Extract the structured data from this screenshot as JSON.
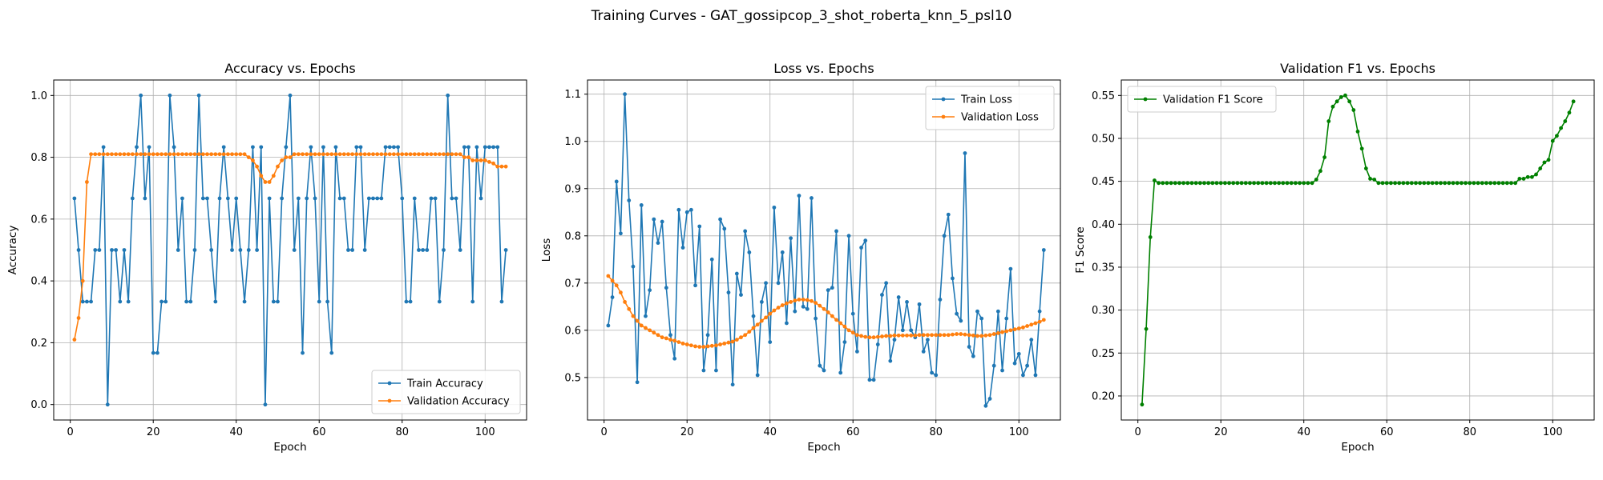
{
  "figure_title": "Training Curves - GAT_gossipcop_3_shot_roberta_knn_5_psl10",
  "colors": {
    "train": "#1f77b4",
    "validation": "#ff7f0e",
    "f1": "#008000"
  },
  "chart_data": [
    {
      "type": "line",
      "title": "Accuracy vs. Epochs",
      "xlabel": "Epoch",
      "ylabel": "Accuracy",
      "xlim": [
        -4,
        110
      ],
      "ylim": [
        -0.05,
        1.05
      ],
      "xticks": [
        0,
        20,
        40,
        60,
        80,
        100
      ],
      "yticks": [
        0.0,
        0.2,
        0.4,
        0.6,
        0.8,
        1.0
      ],
      "ytick_labels": [
        "0.0",
        "0.2",
        "0.4",
        "0.6",
        "0.8",
        "1.0"
      ],
      "grid": true,
      "legend_position": "lower-right",
      "series": [
        {
          "name": "Train Accuracy",
          "color": "#1f77b4",
          "x_start": 1,
          "values": [
            0.667,
            0.5,
            0.333,
            0.333,
            0.333,
            0.5,
            0.5,
            0.833,
            0.0,
            0.5,
            0.5,
            0.333,
            0.5,
            0.333,
            0.667,
            0.833,
            1.0,
            0.667,
            0.833,
            0.167,
            0.167,
            0.333,
            0.333,
            1.0,
            0.833,
            0.5,
            0.667,
            0.333,
            0.333,
            0.5,
            1.0,
            0.667,
            0.667,
            0.5,
            0.333,
            0.667,
            0.833,
            0.667,
            0.5,
            0.667,
            0.5,
            0.333,
            0.5,
            0.833,
            0.5,
            0.833,
            0.0,
            0.667,
            0.333,
            0.333,
            0.667,
            0.833,
            1.0,
            0.5,
            0.667,
            0.167,
            0.667,
            0.833,
            0.667,
            0.333,
            0.833,
            0.333,
            0.167,
            0.833,
            0.667,
            0.667,
            0.5,
            0.5,
            0.833,
            0.833,
            0.5,
            0.667,
            0.667,
            0.667,
            0.667,
            0.833,
            0.833,
            0.833,
            0.833,
            0.667,
            0.333,
            0.333,
            0.667,
            0.5,
            0.5,
            0.5,
            0.667,
            0.667,
            0.333,
            0.5,
            1.0,
            0.667,
            0.667,
            0.5,
            0.833,
            0.833,
            0.333,
            0.833,
            0.667,
            0.833,
            0.833,
            0.833,
            0.833,
            0.333,
            0.5
          ]
        },
        {
          "name": "Validation Accuracy",
          "color": "#ff7f0e",
          "x_start": 1,
          "values": [
            0.21,
            0.28,
            0.4,
            0.72,
            0.81,
            0.81,
            0.81,
            0.81,
            0.81,
            0.81,
            0.81,
            0.81,
            0.81,
            0.81,
            0.81,
            0.81,
            0.81,
            0.81,
            0.81,
            0.81,
            0.81,
            0.81,
            0.81,
            0.81,
            0.81,
            0.81,
            0.81,
            0.81,
            0.81,
            0.81,
            0.81,
            0.81,
            0.81,
            0.81,
            0.81,
            0.81,
            0.81,
            0.81,
            0.81,
            0.81,
            0.81,
            0.81,
            0.8,
            0.79,
            0.77,
            0.74,
            0.72,
            0.72,
            0.74,
            0.77,
            0.79,
            0.8,
            0.8,
            0.81,
            0.81,
            0.81,
            0.81,
            0.81,
            0.81,
            0.81,
            0.81,
            0.81,
            0.81,
            0.81,
            0.81,
            0.81,
            0.81,
            0.81,
            0.81,
            0.81,
            0.81,
            0.81,
            0.81,
            0.81,
            0.81,
            0.81,
            0.81,
            0.81,
            0.81,
            0.81,
            0.81,
            0.81,
            0.81,
            0.81,
            0.81,
            0.81,
            0.81,
            0.81,
            0.81,
            0.81,
            0.81,
            0.81,
            0.81,
            0.81,
            0.8,
            0.8,
            0.79,
            0.79,
            0.79,
            0.79,
            0.785,
            0.78,
            0.77,
            0.77,
            0.77
          ]
        }
      ]
    },
    {
      "type": "line",
      "title": "Loss vs. Epochs",
      "xlabel": "Epoch",
      "ylabel": "Loss",
      "xlim": [
        -4,
        110
      ],
      "ylim": [
        0.41,
        1.13
      ],
      "xticks": [
        0,
        20,
        40,
        60,
        80,
        100
      ],
      "yticks": [
        0.5,
        0.6,
        0.7,
        0.8,
        0.9,
        1.0,
        1.1
      ],
      "ytick_labels": [
        "0.5",
        "0.6",
        "0.7",
        "0.8",
        "0.9",
        "1.0",
        "1.1"
      ],
      "grid": true,
      "legend_position": "upper-right",
      "series": [
        {
          "name": "Train Loss",
          "color": "#1f77b4",
          "x_start": 1,
          "values": [
            0.61,
            0.67,
            0.915,
            0.805,
            1.1,
            0.875,
            0.735,
            0.49,
            0.865,
            0.63,
            0.685,
            0.835,
            0.785,
            0.83,
            0.69,
            0.59,
            0.54,
            0.855,
            0.775,
            0.85,
            0.855,
            0.695,
            0.82,
            0.515,
            0.59,
            0.75,
            0.515,
            0.835,
            0.815,
            0.68,
            0.485,
            0.72,
            0.675,
            0.81,
            0.765,
            0.63,
            0.505,
            0.66,
            0.7,
            0.575,
            0.86,
            0.7,
            0.765,
            0.615,
            0.795,
            0.64,
            0.885,
            0.65,
            0.645,
            0.88,
            0.625,
            0.525,
            0.515,
            0.685,
            0.69,
            0.81,
            0.51,
            0.575,
            0.8,
            0.635,
            0.555,
            0.775,
            0.79,
            0.495,
            0.495,
            0.57,
            0.675,
            0.7,
            0.535,
            0.58,
            0.67,
            0.6,
            0.66,
            0.6,
            0.585,
            0.655,
            0.555,
            0.58,
            0.51,
            0.505,
            0.665,
            0.8,
            0.845,
            0.71,
            0.635,
            0.62,
            0.975,
            0.565,
            0.545,
            0.64,
            0.625,
            0.44,
            0.455,
            0.525,
            0.64,
            0.515,
            0.625,
            0.73,
            0.53,
            0.55,
            0.505,
            0.525,
            0.58,
            0.505,
            0.64,
            0.77
          ]
        },
        {
          "name": "Validation Loss",
          "color": "#ff7f0e",
          "x_start": 1,
          "values": [
            0.715,
            0.705,
            0.695,
            0.68,
            0.66,
            0.645,
            0.63,
            0.62,
            0.61,
            0.605,
            0.6,
            0.595,
            0.59,
            0.585,
            0.583,
            0.58,
            0.578,
            0.575,
            0.572,
            0.57,
            0.568,
            0.566,
            0.565,
            0.565,
            0.566,
            0.567,
            0.568,
            0.57,
            0.572,
            0.574,
            0.576,
            0.58,
            0.585,
            0.59,
            0.597,
            0.605,
            0.612,
            0.62,
            0.627,
            0.635,
            0.642,
            0.648,
            0.653,
            0.657,
            0.66,
            0.663,
            0.665,
            0.665,
            0.664,
            0.662,
            0.658,
            0.652,
            0.645,
            0.638,
            0.63,
            0.622,
            0.615,
            0.608,
            0.6,
            0.595,
            0.59,
            0.588,
            0.586,
            0.585,
            0.585,
            0.586,
            0.587,
            0.588,
            0.588,
            0.589,
            0.589,
            0.589,
            0.589,
            0.589,
            0.589,
            0.59,
            0.59,
            0.59,
            0.59,
            0.59,
            0.59,
            0.59,
            0.59,
            0.591,
            0.592,
            0.592,
            0.591,
            0.59,
            0.589,
            0.588,
            0.588,
            0.589,
            0.59,
            0.592,
            0.594,
            0.596,
            0.598,
            0.6,
            0.602,
            0.604,
            0.606,
            0.609,
            0.612,
            0.615,
            0.618,
            0.622
          ]
        }
      ]
    },
    {
      "type": "line",
      "title": "Validation F1 vs. Epochs",
      "xlabel": "Epoch",
      "ylabel": "F1 Score",
      "xlim": [
        -4,
        110
      ],
      "ylim": [
        0.172,
        0.568
      ],
      "xticks": [
        0,
        20,
        40,
        60,
        80,
        100
      ],
      "yticks": [
        0.2,
        0.25,
        0.3,
        0.35,
        0.4,
        0.45,
        0.5,
        0.55
      ],
      "ytick_labels": [
        "0.20",
        "0.25",
        "0.30",
        "0.35",
        "0.40",
        "0.45",
        "0.50",
        "0.55"
      ],
      "grid": true,
      "legend_position": "upper-left",
      "series": [
        {
          "name": "Validation F1 Score",
          "color": "#008000",
          "x_start": 1,
          "values": [
            0.19,
            0.278,
            0.385,
            0.451,
            0.448,
            0.448,
            0.448,
            0.448,
            0.448,
            0.448,
            0.448,
            0.448,
            0.448,
            0.448,
            0.448,
            0.448,
            0.448,
            0.448,
            0.448,
            0.448,
            0.448,
            0.448,
            0.448,
            0.448,
            0.448,
            0.448,
            0.448,
            0.448,
            0.448,
            0.448,
            0.448,
            0.448,
            0.448,
            0.448,
            0.448,
            0.448,
            0.448,
            0.448,
            0.448,
            0.448,
            0.448,
            0.448,
            0.452,
            0.462,
            0.478,
            0.52,
            0.537,
            0.543,
            0.548,
            0.55,
            0.543,
            0.533,
            0.508,
            0.488,
            0.465,
            0.453,
            0.452,
            0.448,
            0.448,
            0.448,
            0.448,
            0.448,
            0.448,
            0.448,
            0.448,
            0.448,
            0.448,
            0.448,
            0.448,
            0.448,
            0.448,
            0.448,
            0.448,
            0.448,
            0.448,
            0.448,
            0.448,
            0.448,
            0.448,
            0.448,
            0.448,
            0.448,
            0.448,
            0.448,
            0.448,
            0.448,
            0.448,
            0.448,
            0.448,
            0.448,
            0.448,
            0.453,
            0.453,
            0.455,
            0.455,
            0.458,
            0.465,
            0.472,
            0.475,
            0.497,
            0.503,
            0.512,
            0.52,
            0.53,
            0.543
          ]
        }
      ]
    }
  ]
}
